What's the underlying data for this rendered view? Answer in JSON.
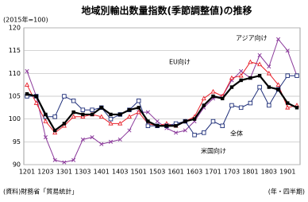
{
  "chart_data": {
    "type": "line",
    "title": "地域別輸出数量指数(季節調整値)の推移",
    "subtitle": "(2015年=100)",
    "source": "(資料)財務省「貿易統計」",
    "x_label": "(年・四半期)",
    "categories": [
      "1201",
      null,
      "1203",
      null,
      "1301",
      null,
      "1303",
      null,
      "1401",
      null,
      "1403",
      null,
      "1501",
      null,
      "1503",
      null,
      "1601",
      null,
      "1603",
      null,
      "1701",
      null,
      "1703",
      null,
      "1801",
      null,
      "1803",
      null,
      "1901",
      null
    ],
    "ylim": [
      90,
      120
    ],
    "yticks": [
      90,
      95,
      100,
      105,
      110,
      115,
      120
    ],
    "grid": true,
    "series": [
      {
        "name": "全体",
        "color": "#000000",
        "marker": "filled-square",
        "values": [
          105.5,
          105,
          101,
          97.5,
          99,
          101.5,
          101,
          101,
          102.5,
          101,
          101,
          102,
          102.5,
          99.5,
          98.5,
          98.5,
          98.5,
          99.5,
          100,
          103,
          105,
          104.5,
          107,
          108.5,
          109,
          109.5,
          107,
          106.5,
          103.5,
          102.5
        ]
      },
      {
        "name": "米国向け",
        "color": "#1f2f7a",
        "marker": "open-square",
        "values": [
          105,
          105,
          100.5,
          100.5,
          105,
          104,
          102,
          102,
          102.5,
          100,
          101,
          102,
          104,
          98.5,
          98.5,
          98.5,
          99,
          99.5,
          96.5,
          97,
          99.5,
          98.5,
          103,
          102.5,
          103.5,
          107,
          103,
          106.5,
          109.5,
          109.5
        ]
      },
      {
        "name": "EU向け",
        "color": "#e8202a",
        "marker": "open-triangle",
        "values": [
          107.5,
          103.5,
          99.5,
          97,
          98.5,
          100.5,
          100.5,
          101,
          100.5,
          99,
          99,
          100.5,
          101.5,
          99,
          98.5,
          99,
          98.5,
          99.5,
          100.5,
          104.5,
          106,
          105,
          109,
          109.5,
          112.5,
          112,
          110,
          107.5,
          102.5,
          103
        ]
      },
      {
        "name": "アジア向け",
        "color": "#8b3a9b",
        "marker": "cross",
        "values": [
          110.5,
          105,
          96,
          91,
          90.5,
          91,
          95.5,
          96,
          94.5,
          95,
          95.5,
          97.5,
          101.5,
          101.5,
          99.5,
          98,
          97,
          97.5,
          99.5,
          102.5,
          104.5,
          105,
          108.5,
          110.5,
          109,
          114,
          111.5,
          117.5,
          115,
          109.5
        ]
      }
    ]
  }
}
